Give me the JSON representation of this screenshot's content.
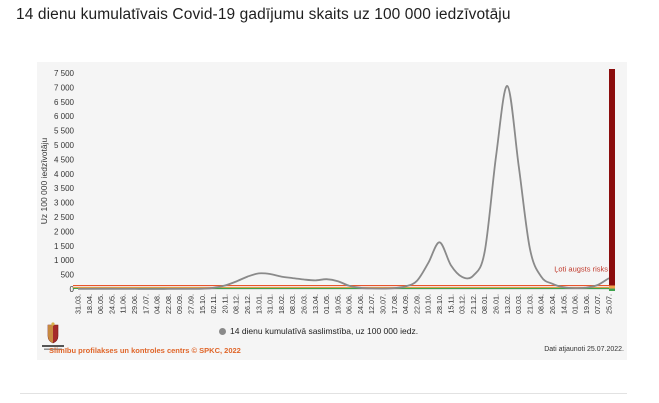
{
  "page": {
    "title": "14 dienu kumulatīvais Covid-19 gadījumu skaits uz 100 000 iedzīvotāju"
  },
  "footer": {
    "source": "Slimību profilakses un kontroles centrs © SPKC, 2022",
    "updated": "Dati atjaunoti 25.07.2022."
  },
  "colors": {
    "line": "#8a8a8a",
    "risk_line_red": "#e8552c",
    "risk_line_orange": "#f0a04a",
    "risk_line_green": "#3fa34d",
    "risk_bar": "#8b0d0d",
    "risk_bar_green": "#3fa34d"
  },
  "chart_data": {
    "type": "line",
    "title": "",
    "xlabel": "",
    "ylabel": "Uz 100 000 iedzīvotāju",
    "ylim": [
      0,
      7500
    ],
    "yticks": [
      0,
      500,
      1000,
      1500,
      2000,
      2500,
      3000,
      3500,
      4000,
      4500,
      5000,
      5500,
      6000,
      6500,
      7000,
      7500
    ],
    "ytick_labels": [
      "0",
      "500",
      "1 000",
      "1 500",
      "2 000",
      "2 500",
      "3 000",
      "3 500",
      "4 000",
      "4 500",
      "5 000",
      "5 500",
      "6 000",
      "6 500",
      "7 000",
      "7 500"
    ],
    "categories": [
      "31.03.",
      "18.04.",
      "06.05.",
      "24.05.",
      "11.06.",
      "29.06.",
      "17.07.",
      "04.08.",
      "22.08.",
      "09.09.",
      "27.09.",
      "15.10.",
      "02.11.",
      "20.11.",
      "08.12.",
      "26.12.",
      "13.01.",
      "31.01.",
      "18.02.",
      "08.03.",
      "26.03.",
      "13.04.",
      "01.05.",
      "19.05.",
      "06.06.",
      "24.06.",
      "12.07.",
      "30.07.",
      "17.08.",
      "04.09.",
      "22.09.",
      "10.10.",
      "28.10.",
      "15.11.",
      "03.12.",
      "21.12.",
      "08.01.",
      "26.01.",
      "13.02.",
      "03.03.",
      "21.03.",
      "08.04.",
      "26.04.",
      "14.05.",
      "01.06.",
      "19.06.",
      "07.07.",
      "25.07."
    ],
    "series": [
      {
        "name": "14 dienu kumulatīvā saslimstība, uz 100 000 iedz.",
        "values": [
          2,
          5,
          8,
          6,
          4,
          2,
          1,
          1,
          2,
          3,
          5,
          10,
          40,
          120,
          260,
          430,
          540,
          520,
          430,
          380,
          330,
          300,
          340,
          270,
          110,
          40,
          20,
          15,
          30,
          90,
          280,
          900,
          1620,
          830,
          420,
          470,
          1300,
          4600,
          7050,
          4300,
          1400,
          430,
          180,
          60,
          30,
          50,
          140,
          380
        ]
      }
    ],
    "reference_lines": [
      {
        "name": "Ļoti augsts risks",
        "value": 120,
        "color": "#e8552c"
      },
      {
        "name": "",
        "value": 50,
        "color": "#f0a04a"
      },
      {
        "name": "",
        "value": 20,
        "color": "#3fa34d"
      }
    ],
    "annotations": [
      {
        "text": "Ļoti augsts risks",
        "color": "#c0392b"
      }
    ],
    "legend": "bottom-center",
    "grid": false
  }
}
